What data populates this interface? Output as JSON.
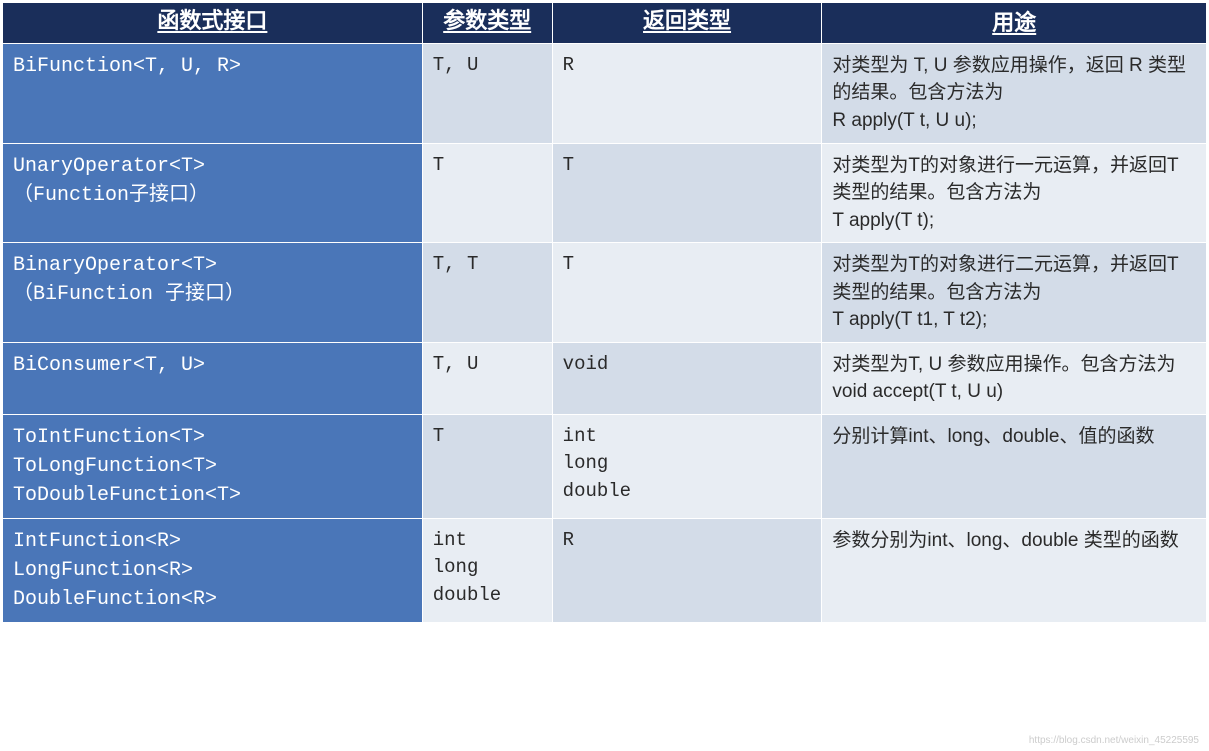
{
  "table": {
    "headers": [
      "函数式接口",
      "参数类型",
      "返回类型",
      "用途"
    ],
    "header_bg": "#1a2e5a",
    "header_color": "#ffffff",
    "col1_bg": "#4a76b8",
    "col_even_bg": "#d3dce8",
    "col_odd_bg": "#e8edf3",
    "rows": [
      {
        "interface": "BiFunction<T, U, R>",
        "param": "T, U",
        "return": "R",
        "desc": "对类型为 T, U 参数应用操作，返回 R 类型的结果。包含方法为\nR apply(T t, U u);"
      },
      {
        "interface": "UnaryOperator<T>\n（Function子接口）",
        "param": "T",
        "return": "T",
        "desc": "对类型为T的对象进行一元运算，并返回T类型的结果。包含方法为\nT apply(T t);"
      },
      {
        "interface": "BinaryOperator<T>\n（BiFunction 子接口）",
        "param": "T, T",
        "return": "T",
        "desc": "对类型为T的对象进行二元运算，并返回T类型的结果。包含方法为\nT apply(T t1, T t2);"
      },
      {
        "interface": "BiConsumer<T, U>",
        "param": "T, U",
        "return": "void",
        "desc": "对类型为T, U 参数应用操作。包含方法为\nvoid accept(T t, U u)"
      },
      {
        "interface": "ToIntFunction<T>\nToLongFunction<T>\nToDoubleFunction<T>",
        "param": "T",
        "return": "int\nlong\ndouble",
        "desc": "分别计算int、long、double、值的函数"
      },
      {
        "interface": "IntFunction<R>\nLongFunction<R>\nDoubleFunction<R>",
        "param": "int\nlong\ndouble",
        "return": "R",
        "desc": "参数分别为int、long、double 类型的函数"
      }
    ]
  },
  "watermark": "https://blog.csdn.net/weixin_45225595"
}
